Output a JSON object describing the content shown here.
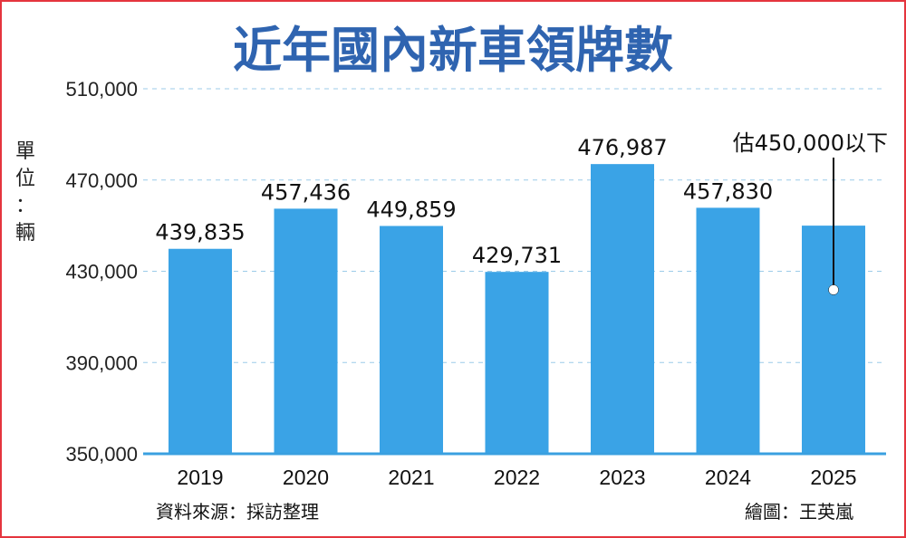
{
  "chart_data": {
    "type": "bar",
    "title": "近年國內新車領牌數",
    "ylabel": "單位：輛",
    "categories": [
      "2019",
      "2020",
      "2021",
      "2022",
      "2023",
      "2024",
      "2025"
    ],
    "values": [
      439835,
      457436,
      449859,
      429731,
      476987,
      457830,
      450000
    ],
    "data_labels": [
      "439,835",
      "457,436",
      "449,859",
      "429,731",
      "476,987",
      "457,830",
      ""
    ],
    "ylim": [
      350000,
      510000
    ],
    "yticks": [
      350000,
      390000,
      430000,
      470000,
      510000
    ],
    "ytick_labels": [
      "350,000",
      "390,000",
      "430,000",
      "470,000",
      "510,000"
    ],
    "grid": true,
    "bar_color": "#3aa3e6",
    "annotation": {
      "category": "2025",
      "text": "估450,000以下"
    }
  },
  "footer": {
    "source": "資料來源：採訪整理",
    "credit": "繪圖：王英嵐"
  },
  "colors": {
    "title": "#2f64b0",
    "border": "#e5353e",
    "grid": "#9ccbe8",
    "axis": "#3aa0e0"
  }
}
